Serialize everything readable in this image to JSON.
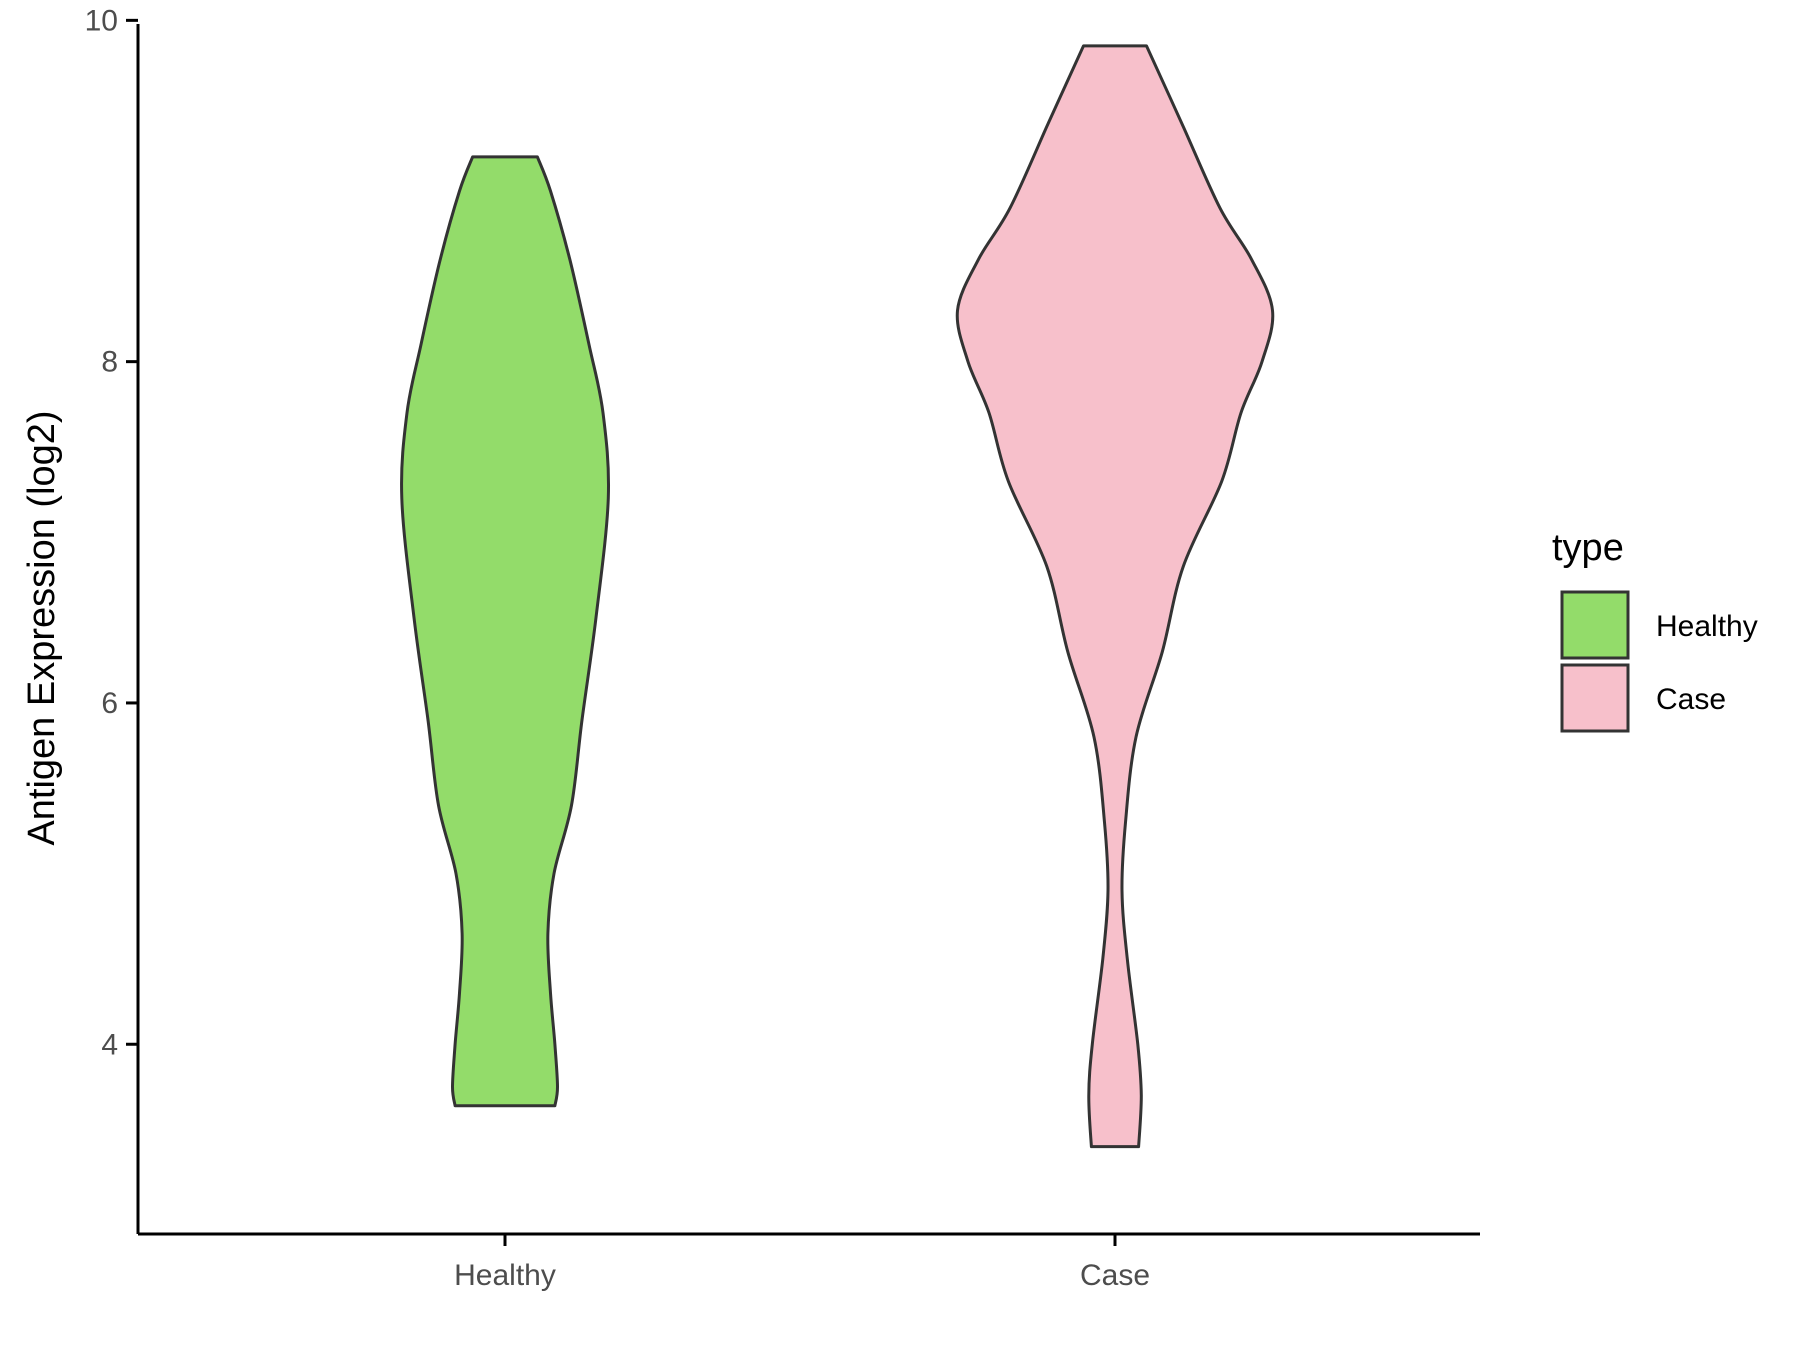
{
  "chart_data": {
    "type": "violin",
    "ylabel": "Antigen Expression (log2)",
    "xlabel": "",
    "categories": [
      "Healthy",
      "Case"
    ],
    "ylim": [
      3.0,
      10.2
    ],
    "yticks": [
      "4",
      "6",
      "8",
      "10"
    ],
    "grid": false,
    "legend": {
      "title": "type",
      "position": "right",
      "items": [
        {
          "label": "Healthy",
          "color": "#93DC6A"
        },
        {
          "label": "Case",
          "color": "#F7C0CB"
        }
      ]
    },
    "series": [
      {
        "name": "Healthy",
        "color": "#93DC6A",
        "min": 3.64,
        "max": 9.2,
        "profile": [
          [
            3.64,
            0.285
          ],
          [
            3.75,
            0.3
          ],
          [
            4.0,
            0.285
          ],
          [
            4.3,
            0.26
          ],
          [
            4.65,
            0.245
          ],
          [
            5.0,
            0.28
          ],
          [
            5.4,
            0.38
          ],
          [
            5.9,
            0.44
          ],
          [
            6.5,
            0.52
          ],
          [
            7.2,
            0.59
          ],
          [
            7.7,
            0.56
          ],
          [
            8.1,
            0.48
          ],
          [
            8.6,
            0.37
          ],
          [
            9.0,
            0.26
          ],
          [
            9.2,
            0.185
          ]
        ]
      },
      {
        "name": "Case",
        "color": "#F7C0CB",
        "min": 3.4,
        "max": 9.85,
        "profile": [
          [
            3.4,
            0.135
          ],
          [
            3.7,
            0.15
          ],
          [
            4.0,
            0.13
          ],
          [
            4.5,
            0.07
          ],
          [
            4.9,
            0.04
          ],
          [
            5.3,
            0.06
          ],
          [
            5.8,
            0.12
          ],
          [
            6.3,
            0.27
          ],
          [
            6.8,
            0.39
          ],
          [
            7.3,
            0.61
          ],
          [
            7.7,
            0.72
          ],
          [
            8.0,
            0.84
          ],
          [
            8.3,
            0.9
          ],
          [
            8.6,
            0.78
          ],
          [
            8.9,
            0.6
          ],
          [
            9.4,
            0.38
          ],
          [
            9.85,
            0.18
          ]
        ]
      }
    ]
  }
}
